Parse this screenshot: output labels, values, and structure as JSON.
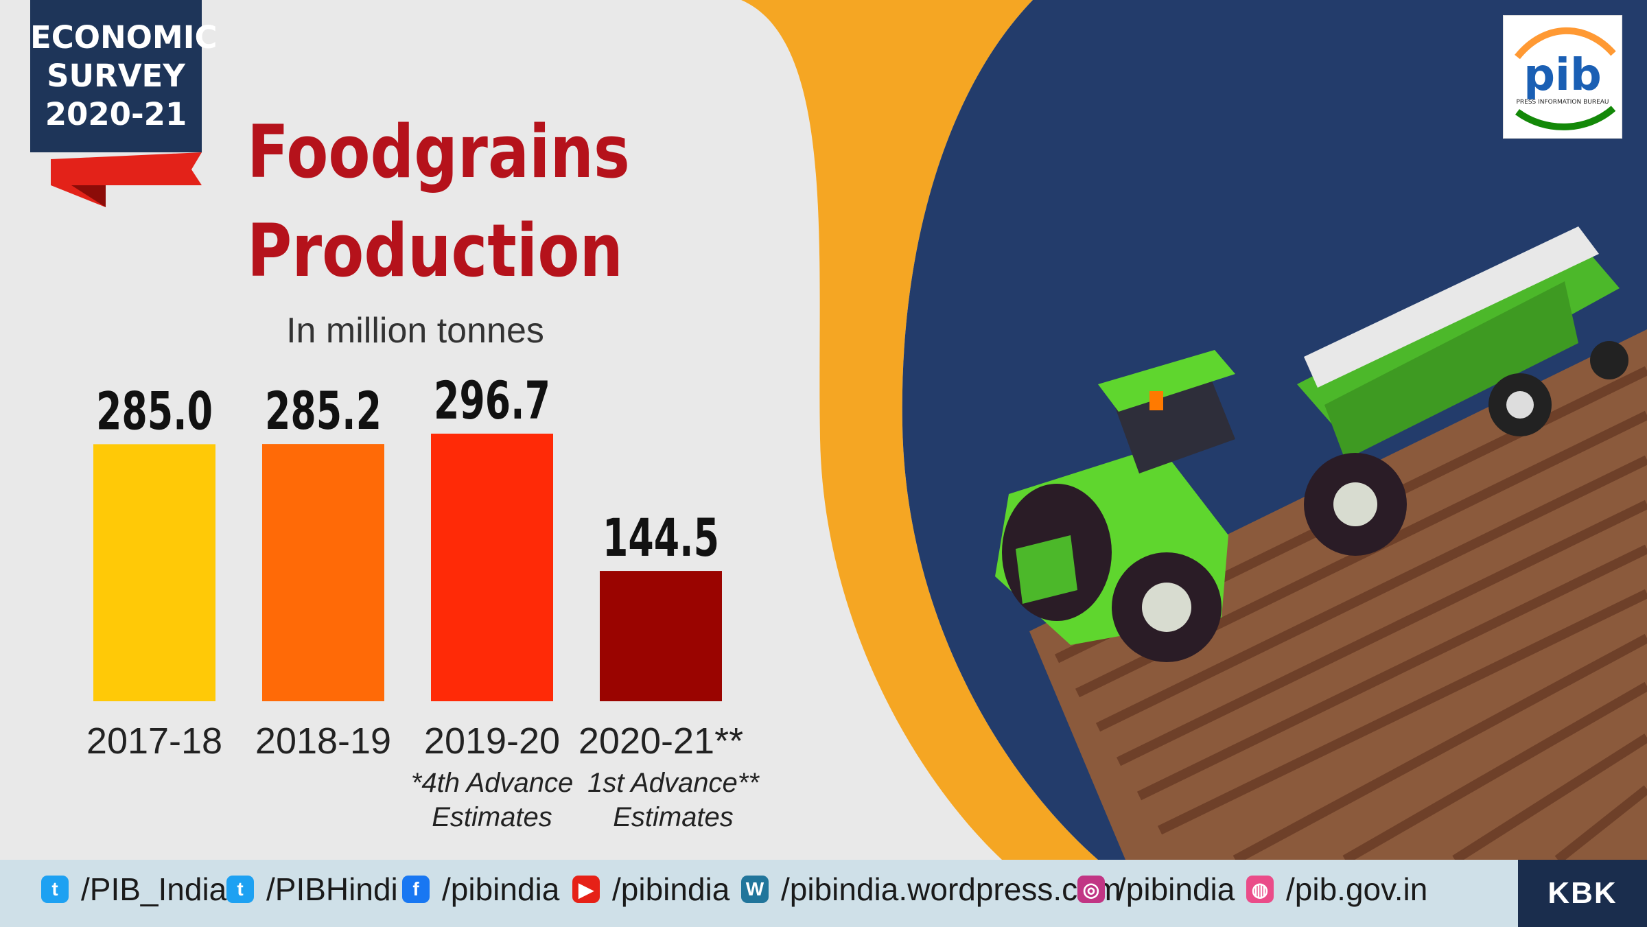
{
  "badge": {
    "line1": "ECONOMIC",
    "line2": "SURVEY",
    "line3": "2020-21"
  },
  "logo": {
    "mark": "pib",
    "caption": "PRESS INFORMATION BUREAU"
  },
  "chart_data": {
    "type": "bar",
    "title_line1": "Foodgrains",
    "title_line2": "Production",
    "subtitle": "In million tonnes",
    "categories": [
      "2017-18",
      "2018-19",
      "2019-20",
      "2020-21**"
    ],
    "values": [
      285.0,
      285.2,
      296.7,
      144.5
    ],
    "value_labels": [
      "285.0",
      "285.2",
      "296.7",
      "144.5"
    ],
    "notes": [
      [
        "",
        ""
      ],
      [
        "",
        ""
      ],
      [
        "*4th Advance",
        "Estimates"
      ],
      [
        "1st Advance**",
        "Estimates"
      ]
    ],
    "colors": [
      "#ffc907",
      "#ff6a07",
      "#ff2a07",
      "#9a0400"
    ],
    "ylim": [
      0,
      296.7
    ],
    "xlabel": "",
    "ylabel": "",
    "grid": false
  },
  "footer": {
    "links": [
      {
        "icon": "twitter-icon",
        "text": "/PIB_India"
      },
      {
        "icon": "twitter-icon",
        "text": "/PIBHindi"
      },
      {
        "icon": "facebook-icon",
        "text": "/pibindia"
      },
      {
        "icon": "youtube-icon",
        "text": "/pibindia"
      },
      {
        "icon": "wordpress-icon",
        "text": "/pibindia.wordpress.com"
      },
      {
        "icon": "instagram-icon",
        "text": "/pibindia"
      },
      {
        "icon": "dribbble-icon",
        "text": "/pib.gov.in"
      }
    ],
    "credit": "KBK"
  },
  "theme": {
    "title_color": "#b5121b",
    "navy": "#1e3559",
    "accent_orange": "#f5a623",
    "tractor_green": "#5fd62e",
    "field_brown": "#8b5a3c"
  }
}
